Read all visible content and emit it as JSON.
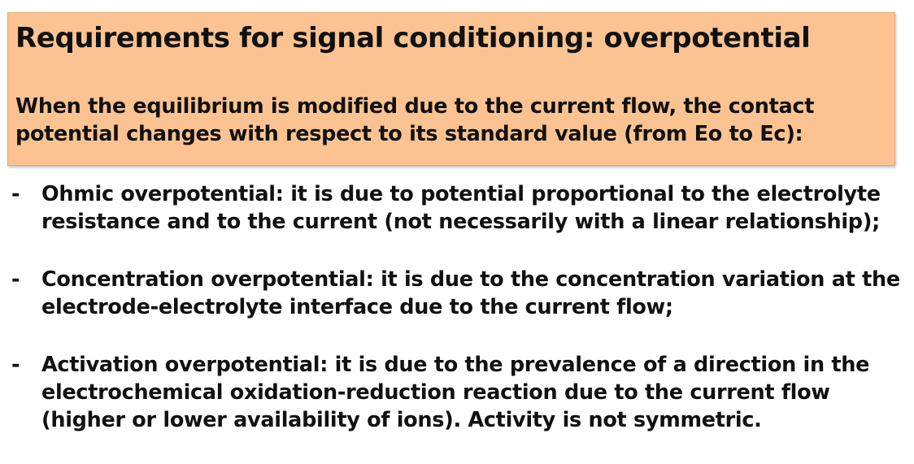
{
  "slide": {
    "title": "Requirements for signal conditioning: overpotential",
    "intro": "When the equilibrium is modified due to the current flow, the contact potential changes with respect to its standard value (from Eo to Ec):",
    "bullet_marker": "-",
    "bullets": [
      "Ohmic overpotential: it is due to potential proportional to the electrolyte resistance and to the current (not necessarily with a linear relationship);",
      "Concentration overpotential: it is due to the concentration variation at the electrode-electrolyte interface due to the current flow;",
      "Activation overpotential: it is due to the prevalence of a direction in the electrochemical oxidation-reduction reaction due to the current flow (higher or lower availability of ions). Activity is not symmetric."
    ]
  },
  "colors": {
    "header_background": "#fbc392",
    "text": "#111111",
    "page_background": "#ffffff"
  }
}
